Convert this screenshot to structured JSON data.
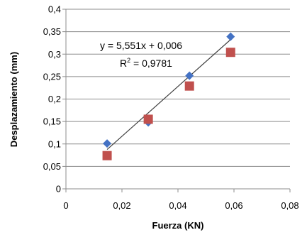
{
  "chart_data": {
    "type": "scatter",
    "xlabel": "Fuerza (KN)",
    "ylabel": "Desplazamiento (mm)",
    "xlim": [
      0,
      0.08
    ],
    "ylim": [
      0,
      0.4
    ],
    "x_ticks": [
      "0",
      "0,02",
      "0,04",
      "0,06",
      "0,08"
    ],
    "y_ticks": [
      "0",
      "0,05",
      "0,1",
      "0,15",
      "0,2",
      "0,25",
      "0,3",
      "0,35",
      "0,4"
    ],
    "grid": "horizontal",
    "legend": "none",
    "series": [
      {
        "marker": "diamond",
        "color": "#4472C4",
        "points": [
          {
            "x": 0.0147,
            "y": 0.101
          },
          {
            "x": 0.0294,
            "y": 0.148
          },
          {
            "x": 0.0441,
            "y": 0.252
          },
          {
            "x": 0.0588,
            "y": 0.339
          }
        ]
      },
      {
        "marker": "square",
        "color": "#C0504D",
        "points": [
          {
            "x": 0.0147,
            "y": 0.074
          },
          {
            "x": 0.0294,
            "y": 0.155
          },
          {
            "x": 0.0441,
            "y": 0.229
          },
          {
            "x": 0.0588,
            "y": 0.304
          }
        ]
      }
    ],
    "trendline": {
      "slope": 5.551,
      "intercept": 0.006,
      "x_range": [
        0.0147,
        0.0588
      ],
      "color": "#404040"
    },
    "annotations": {
      "equation": "y = 5,551x + 0,006",
      "r2_prefix": "R",
      "r2_sup": "2",
      "r2_value": " = 0,9781"
    }
  }
}
